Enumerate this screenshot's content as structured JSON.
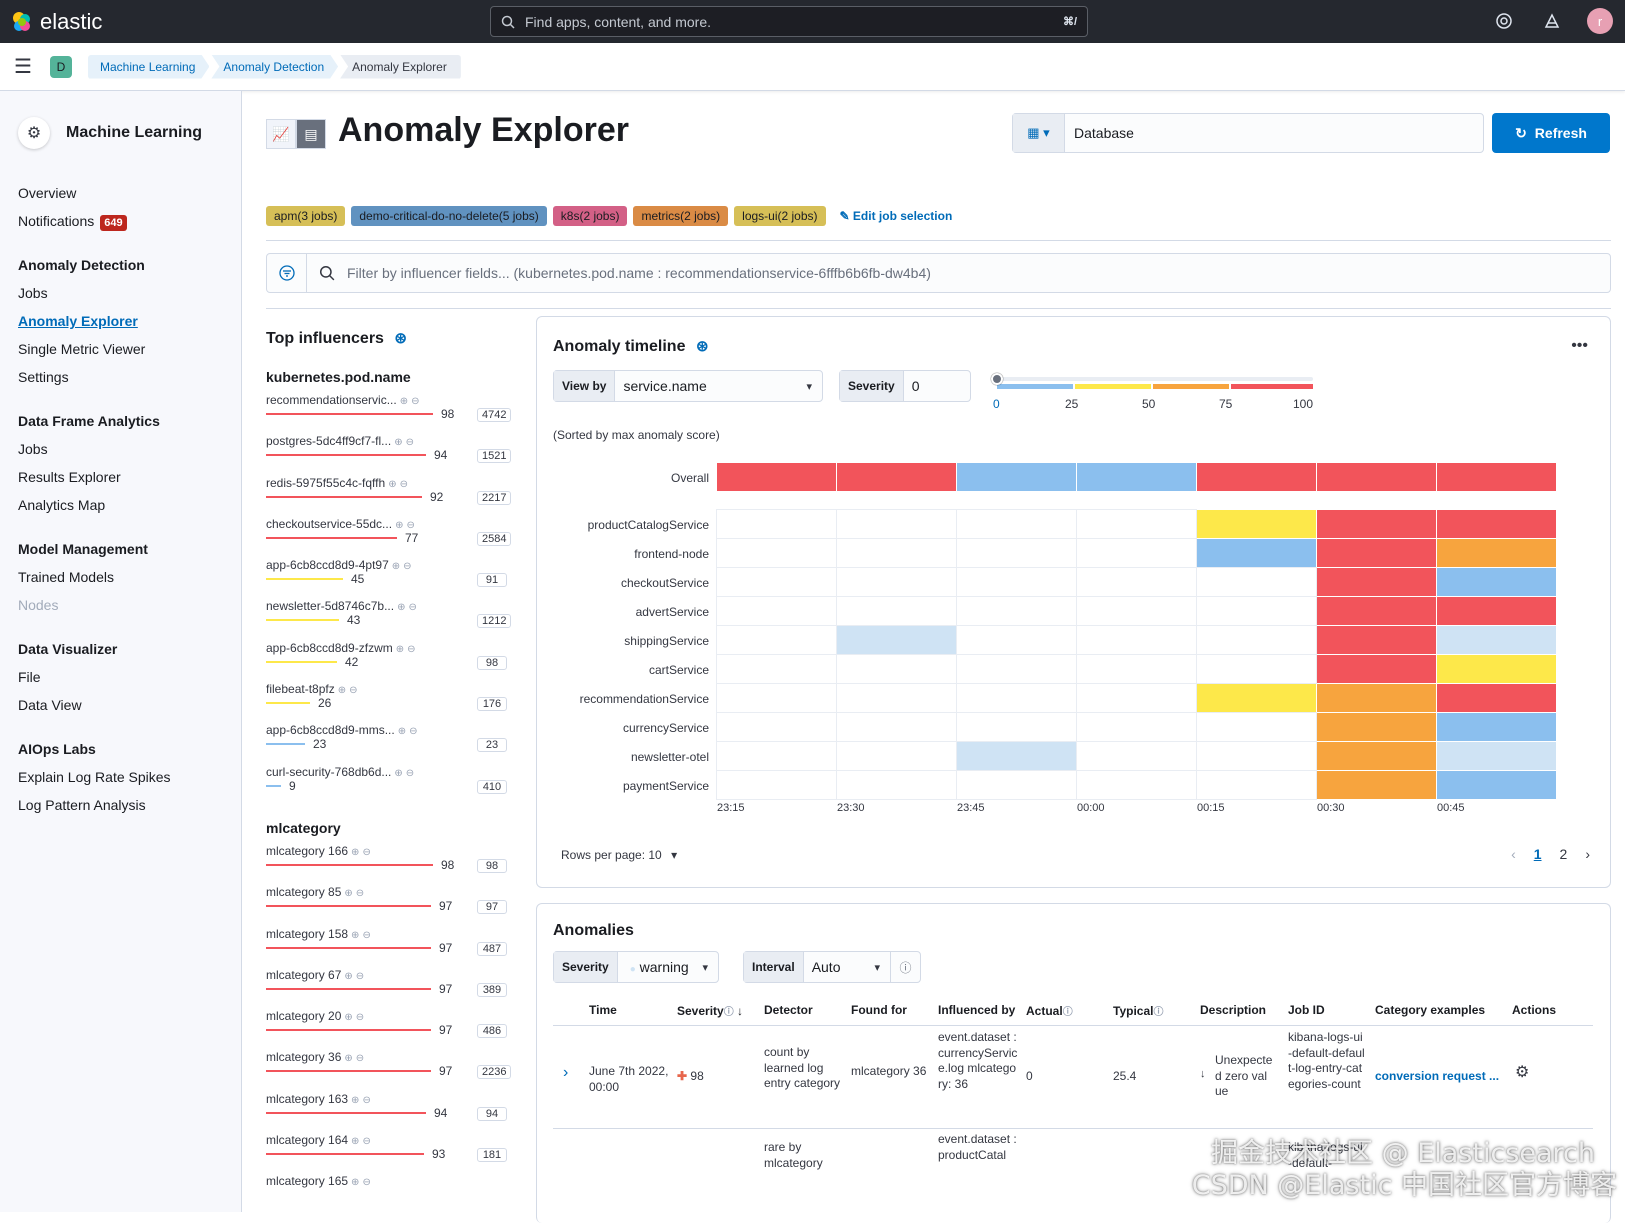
{
  "topbar": {
    "brand": "elastic",
    "search_placeholder": "Find apps, content, and more.",
    "search_shortcut": "⌘/",
    "avatar_letter": "r"
  },
  "subbar": {
    "space_letter": "D",
    "breadcrumbs": [
      "Machine Learning",
      "Anomaly Detection",
      "Anomaly Explorer"
    ]
  },
  "sidebar": {
    "title": "Machine Learning",
    "overview": "Overview",
    "notifications": "Notifications",
    "notifications_count": "649",
    "groups": [
      {
        "title": "Anomaly Detection",
        "items": [
          "Jobs",
          "Anomaly Explorer",
          "Single Metric Viewer",
          "Settings"
        ]
      },
      {
        "title": "Data Frame Analytics",
        "items": [
          "Jobs",
          "Results Explorer",
          "Analytics Map"
        ]
      },
      {
        "title": "Model Management",
        "items": [
          "Trained Models",
          "Nodes"
        ]
      },
      {
        "title": "Data Visualizer",
        "items": [
          "File",
          "Data View"
        ]
      },
      {
        "title": "AIOps Labs",
        "items": [
          "Explain Log Rate Spikes",
          "Log Pattern Analysis"
        ]
      }
    ]
  },
  "header": {
    "title": "Anomaly Explorer",
    "data_view": "Database",
    "refresh": "Refresh"
  },
  "jobs": {
    "badges": [
      {
        "label": "apm(3 jobs)",
        "color": "#d6bf57"
      },
      {
        "label": "demo-critical-do-no-delete(5 jobs)",
        "color": "#6092c0"
      },
      {
        "label": "k8s(2 jobs)",
        "color": "#d36086"
      },
      {
        "label": "metrics(2 jobs)",
        "color": "#da8b45"
      },
      {
        "label": "logs-ui(2 jobs)",
        "color": "#d6bf57"
      }
    ],
    "edit": "Edit job selection"
  },
  "filter": {
    "placeholder": "Filter by influencer fields... (kubernetes.pod.name : recommendationservice-6fffb6b6fb-dw4b4)"
  },
  "influencers": {
    "title": "Top influencers",
    "groups": [
      {
        "field": "kubernetes.pod.name",
        "rows": [
          {
            "name": "recommendationservic...",
            "score": 98,
            "count": "4742"
          },
          {
            "name": "postgres-5dc4ff9cf7-fl...",
            "score": 94,
            "count": "1521"
          },
          {
            "name": "redis-5975f55c4c-fqffh",
            "score": 92,
            "count": "2217"
          },
          {
            "name": "checkoutservice-55dc...",
            "score": 77,
            "count": "2584"
          },
          {
            "name": "app-6cb8ccd8d9-4pt97",
            "score": 45,
            "count": "91"
          },
          {
            "name": "newsletter-5d8746c7b...",
            "score": 43,
            "count": "1212"
          },
          {
            "name": "app-6cb8ccd8d9-zfzwm",
            "score": 42,
            "count": "98"
          },
          {
            "name": "filebeat-t8pfz",
            "score": 26,
            "count": "176"
          },
          {
            "name": "app-6cb8ccd8d9-mms...",
            "score": 23,
            "count": "23"
          },
          {
            "name": "curl-security-768db6d...",
            "score": 9,
            "count": "410"
          }
        ]
      },
      {
        "field": "mlcategory",
        "rows": [
          {
            "name": "mlcategory 166",
            "score": 98,
            "count": "98"
          },
          {
            "name": "mlcategory 85",
            "score": 97,
            "count": "97"
          },
          {
            "name": "mlcategory 158",
            "score": 97,
            "count": "487"
          },
          {
            "name": "mlcategory 67",
            "score": 97,
            "count": "389"
          },
          {
            "name": "mlcategory 20",
            "score": 97,
            "count": "486"
          },
          {
            "name": "mlcategory 36",
            "score": 97,
            "count": "2236"
          },
          {
            "name": "mlcategory 163",
            "score": 94,
            "count": "94"
          },
          {
            "name": "mlcategory 164",
            "score": 93,
            "count": "181"
          },
          {
            "name": "mlcategory 165",
            "score": null,
            "count": ""
          }
        ]
      }
    ]
  },
  "timeline": {
    "title": "Anomaly timeline",
    "view_by_label": "View by",
    "view_by_value": "service.name",
    "severity_label": "Severity",
    "severity_value": "0",
    "slider_ticks": [
      "0",
      "25",
      "50",
      "75",
      "100"
    ],
    "sorted_note": "(Sorted by max anomaly score)",
    "time_ticks": [
      "23:15",
      "23:30",
      "23:45",
      "00:00",
      "00:15",
      "00:30",
      "00:45"
    ],
    "rows_per_page": "Rows per page: 10",
    "pages": [
      "1",
      "2"
    ],
    "colors": {
      "red": "#f2545b",
      "orange": "#f7a43e",
      "yellow": "#fde84a",
      "blue": "#8bbfee",
      "lightblue": "#cfe3f4",
      "empty": "#ffffff"
    },
    "rows": [
      {
        "label": "Overall",
        "cells": [
          "red",
          "red",
          "blue",
          "blue",
          "red",
          "red",
          "red"
        ]
      },
      {
        "label": "productCatalogService",
        "cells": [
          "empty",
          "empty",
          "empty",
          "empty",
          "yellow",
          "red",
          "red"
        ]
      },
      {
        "label": "frontend-node",
        "cells": [
          "empty",
          "empty",
          "empty",
          "empty",
          "blue",
          "red",
          "orange"
        ]
      },
      {
        "label": "checkoutService",
        "cells": [
          "empty",
          "empty",
          "empty",
          "empty",
          "empty",
          "red",
          "blue"
        ]
      },
      {
        "label": "advertService",
        "cells": [
          "empty",
          "empty",
          "empty",
          "empty",
          "empty",
          "red",
          "red"
        ]
      },
      {
        "label": "shippingService",
        "cells": [
          "empty",
          "lightblue",
          "empty",
          "empty",
          "empty",
          "red",
          "lightblue"
        ]
      },
      {
        "label": "cartService",
        "cells": [
          "empty",
          "empty",
          "empty",
          "empty",
          "empty",
          "red",
          "yellow"
        ]
      },
      {
        "label": "recommendationService",
        "cells": [
          "empty",
          "empty",
          "empty",
          "empty",
          "yellow",
          "orange",
          "red"
        ]
      },
      {
        "label": "currencyService",
        "cells": [
          "empty",
          "empty",
          "empty",
          "empty",
          "empty",
          "orange",
          "blue"
        ]
      },
      {
        "label": "newsletter-otel",
        "cells": [
          "empty",
          "empty",
          "lightblue",
          "empty",
          "empty",
          "orange",
          "lightblue"
        ]
      },
      {
        "label": "paymentService",
        "cells": [
          "empty",
          "empty",
          "empty",
          "empty",
          "empty",
          "orange",
          "blue"
        ]
      }
    ]
  },
  "anomalies": {
    "title": "Anomalies",
    "severity_label": "Severity",
    "severity_value": "warning",
    "interval_label": "Interval",
    "interval_value": "Auto",
    "columns": [
      "Time",
      "Severity",
      "Detector",
      "Found for",
      "Influenced by",
      "Actual",
      "Typical",
      "Description",
      "Job ID",
      "Category examples",
      "Actions"
    ],
    "row1": {
      "time": "June 7th 2022, 00:00",
      "severity": "98",
      "detector": "count by learned log entry category",
      "found_for": "mlcategory 36",
      "influenced_by": "event.dataset : currencyService.log mlcategory: 36",
      "actual": "0",
      "typical": "25.4",
      "description": "Unexpected zero value",
      "job_id": "kibana-logs-ui-default-default-log-entry-categories-count",
      "category_example": "conversion request ..."
    },
    "row2": {
      "detector": "rare by mlcategory",
      "influenced_by": "event.dataset : productCatal",
      "job_id": "kibana-logs-ui-default-"
    }
  },
  "watermark": "CSDN @Elastic 中国社区官方博客",
  "watermark2": "掘金技术社区 @ Elasticsearch"
}
